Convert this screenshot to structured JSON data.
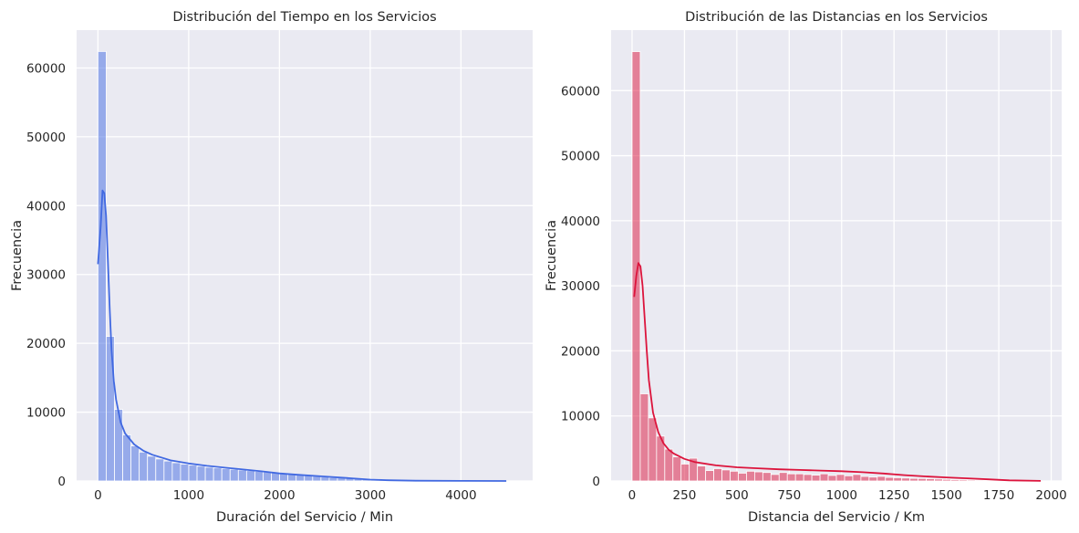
{
  "chart_data": [
    {
      "type": "bar",
      "title": "Distribución del Tiempo en los Servicios",
      "xlabel": "Duración del Servicio / Min",
      "ylabel": "Frecuencia",
      "xlim": [
        -235,
        4790
      ],
      "ylim": [
        0,
        65500
      ],
      "xticks": [
        0,
        1000,
        2000,
        3000,
        4000
      ],
      "yticks": [
        0,
        10000,
        20000,
        30000,
        40000,
        50000,
        60000
      ],
      "grid": true,
      "bar_color": "#4169e1",
      "bins": {
        "start": 0,
        "width": 91,
        "counts": [
          62400,
          21000,
          10400,
          6700,
          5100,
          4200,
          3600,
          3200,
          2900,
          2650,
          2450,
          2300,
          2150,
          2000,
          1900,
          1800,
          1700,
          1600,
          1500,
          1400,
          1300,
          1200,
          1100,
          1000,
          900,
          800,
          700,
          600,
          500,
          450,
          400,
          350,
          300,
          250,
          200,
          150,
          100,
          80,
          60,
          50,
          40,
          30,
          20,
          15,
          10,
          8,
          6,
          5,
          4,
          3
        ]
      },
      "kde": {
        "x": [
          0,
          30,
          50,
          70,
          90,
          110,
          130,
          150,
          175,
          200,
          250,
          300,
          400,
          500,
          600,
          800,
          1000,
          1200,
          1500,
          1800,
          2000,
          2200,
          2500,
          2800,
          3000,
          3200,
          3500,
          4000,
          4500
        ],
        "y": [
          31500,
          37000,
          42200,
          41800,
          38500,
          32000,
          25000,
          19000,
          14500,
          11800,
          8500,
          6900,
          5300,
          4400,
          3800,
          3000,
          2550,
          2200,
          1800,
          1400,
          1100,
          900,
          650,
          380,
          200,
          100,
          40,
          10,
          5
        ]
      }
    },
    {
      "type": "bar",
      "title": "Distribución de las Distancias en los Servicios",
      "xlabel": "Distancia del Servicio / Km",
      "ylabel": "Frecuencia",
      "xlim": [
        -100,
        2050
      ],
      "ylim": [
        0,
        69300
      ],
      "xticks": [
        0,
        250,
        500,
        750,
        1000,
        1250,
        1500,
        1750,
        2000
      ],
      "yticks": [
        0,
        10000,
        20000,
        30000,
        40000,
        50000,
        60000
      ],
      "grid": true,
      "bar_color": "#dc143c",
      "bins": {
        "start": 0,
        "width": 39,
        "counts": [
          66000,
          13400,
          9700,
          6900,
          4900,
          3700,
          2600,
          3500,
          2300,
          1600,
          1900,
          1700,
          1500,
          1200,
          1500,
          1400,
          1300,
          1000,
          1300,
          1100,
          1100,
          1000,
          900,
          1100,
          850,
          1000,
          800,
          1000,
          700,
          600,
          700,
          550,
          500,
          450,
          400,
          380,
          350,
          300,
          250,
          200,
          180,
          150,
          120,
          100,
          80,
          60,
          40,
          30,
          20,
          10
        ]
      },
      "kde": {
        "x": [
          10,
          20,
          30,
          40,
          50,
          60,
          70,
          80,
          100,
          125,
          150,
          175,
          200,
          250,
          300,
          400,
          500,
          600,
          700,
          800,
          900,
          1000,
          1100,
          1200,
          1300,
          1400,
          1500,
          1600,
          1700,
          1800,
          1950
        ],
        "y": [
          28300,
          31500,
          33500,
          33000,
          30000,
          25000,
          20000,
          15500,
          10500,
          7500,
          5800,
          4800,
          4200,
          3400,
          2900,
          2400,
          2100,
          1950,
          1800,
          1700,
          1600,
          1500,
          1350,
          1150,
          900,
          700,
          550,
          400,
          250,
          100,
          20
        ]
      }
    }
  ]
}
